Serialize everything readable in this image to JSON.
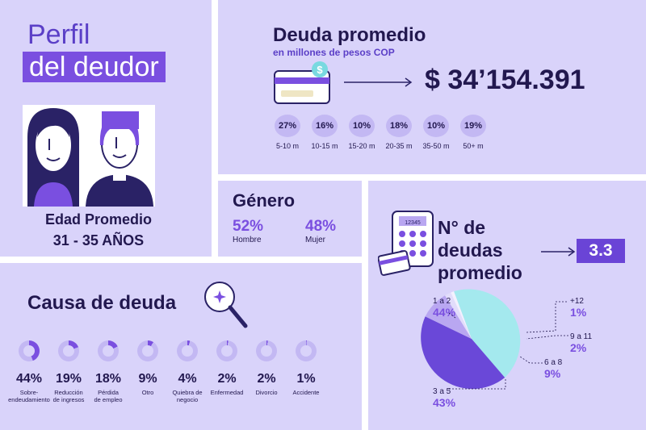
{
  "profile": {
    "title_line1": "Perfil",
    "title_line2": "del deudor",
    "age_label": "Edad Promedio",
    "age_value": "31 - 35 AÑOS"
  },
  "debt": {
    "title": "Deuda promedio",
    "subtitle": "en millones de pesos COP",
    "amount": "$ 34’154.391",
    "dollar_sign": "$",
    "ranges": [
      {
        "pct": "27%",
        "label": "5-10 m"
      },
      {
        "pct": "16%",
        "label": "10-15 m"
      },
      {
        "pct": "10%",
        "label": "15-20 m"
      },
      {
        "pct": "18%",
        "label": "20-35 m"
      },
      {
        "pct": "10%",
        "label": "35-50 m"
      },
      {
        "pct": "19%",
        "label": "50+ m"
      }
    ]
  },
  "gender": {
    "title": "Género",
    "men_pct": "52%",
    "men_label": "Hombre",
    "women_pct": "48%",
    "women_label": "Mujer"
  },
  "cause": {
    "title": "Causa de deuda",
    "items": [
      {
        "pct": "44%",
        "label": "Sobre-\nendeudamiento",
        "value": 44
      },
      {
        "pct": "19%",
        "label": "Reducción\nde ingresos",
        "value": 19
      },
      {
        "pct": "18%",
        "label": "Pérdida\nde empleo",
        "value": 18
      },
      {
        "pct": "9%",
        "label": "Otro",
        "value": 9
      },
      {
        "pct": "4%",
        "label": "Quiebra de\nnegocio",
        "value": 4
      },
      {
        "pct": "2%",
        "label": "Enfermedad",
        "value": 2
      },
      {
        "pct": "2%",
        "label": "Divorcio",
        "value": 2
      },
      {
        "pct": "1%",
        "label": "Accidente",
        "value": 1
      }
    ]
  },
  "count": {
    "title_line1": "N° de deudas",
    "title_line2": "promedio",
    "value": "3.3",
    "calc_display": "12345"
  },
  "colors": {
    "panel": "#d9d3fa",
    "accent": "#7a4fe0",
    "dark": "#22184f",
    "pie_cyan": "#a4e9ee",
    "pie_purple": "#6a48d8",
    "pie_lilac": "#b9a7f1",
    "pie_pale": "#e2ddfb",
    "pie_white": "#f3f1fe"
  },
  "chart_data": [
    {
      "type": "bar",
      "title": "Deuda promedio",
      "subtitle": "en millones de pesos COP",
      "categories": [
        "5-10 m",
        "10-15 m",
        "15-20 m",
        "20-35 m",
        "35-50 m",
        "50+ m"
      ],
      "values": [
        27,
        16,
        10,
        18,
        10,
        19
      ]
    },
    {
      "type": "pie",
      "title": "Causa de deuda",
      "categories": [
        "Sobre-endeudamiento",
        "Reducción de ingresos",
        "Pérdida de empleo",
        "Otro",
        "Quiebra de negocio",
        "Enfermedad",
        "Divorcio",
        "Accidente"
      ],
      "values": [
        44,
        19,
        18,
        9,
        4,
        2,
        2,
        1
      ]
    },
    {
      "type": "pie",
      "title": "N° de deudas promedio",
      "categories": [
        "1 a 2",
        "3 a 5",
        "6 a 8",
        "9 a 11",
        "+12"
      ],
      "values": [
        44,
        43,
        9,
        2,
        1
      ],
      "labels": [
        "44%",
        "43%",
        "9%",
        "2%",
        "1%"
      ]
    }
  ]
}
